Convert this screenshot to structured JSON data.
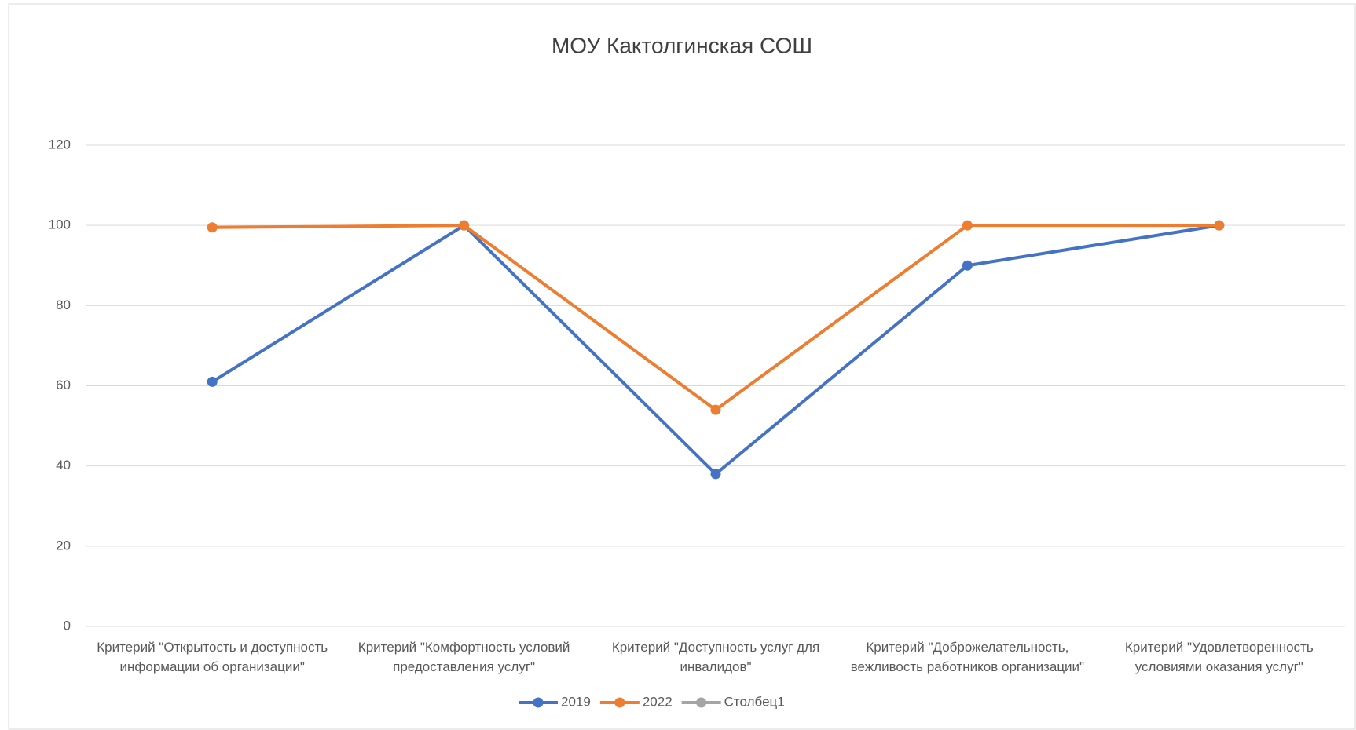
{
  "chart_data": {
    "type": "line",
    "title": "МОУ Кактолгинская СОШ",
    "categories": [
      "Критерий \"Открытость и доступность информации об организации\"",
      "Критерий \"Комфортность условий предоставления услуг\"",
      "Критерий \"Доступность услуг для инвалидов\"",
      "Критерий \"Доброжелательность, вежливость работников организации\"",
      "Критерий \"Удовлетворенность условиями оказания услуг\""
    ],
    "series": [
      {
        "name": "2019",
        "color": "#4472c4",
        "values": [
          61,
          100,
          38,
          90,
          100
        ]
      },
      {
        "name": "2022",
        "color": "#ed7d31",
        "values": [
          99.5,
          100,
          54,
          100,
          100
        ]
      },
      {
        "name": "Столбец1",
        "color": "#a5a5a5",
        "values": [
          null,
          null,
          null,
          null,
          null
        ]
      }
    ],
    "ylim": [
      0,
      120
    ],
    "yticks": [
      0,
      20,
      40,
      60,
      80,
      100,
      120
    ],
    "grid": true,
    "legend": "bottom"
  }
}
